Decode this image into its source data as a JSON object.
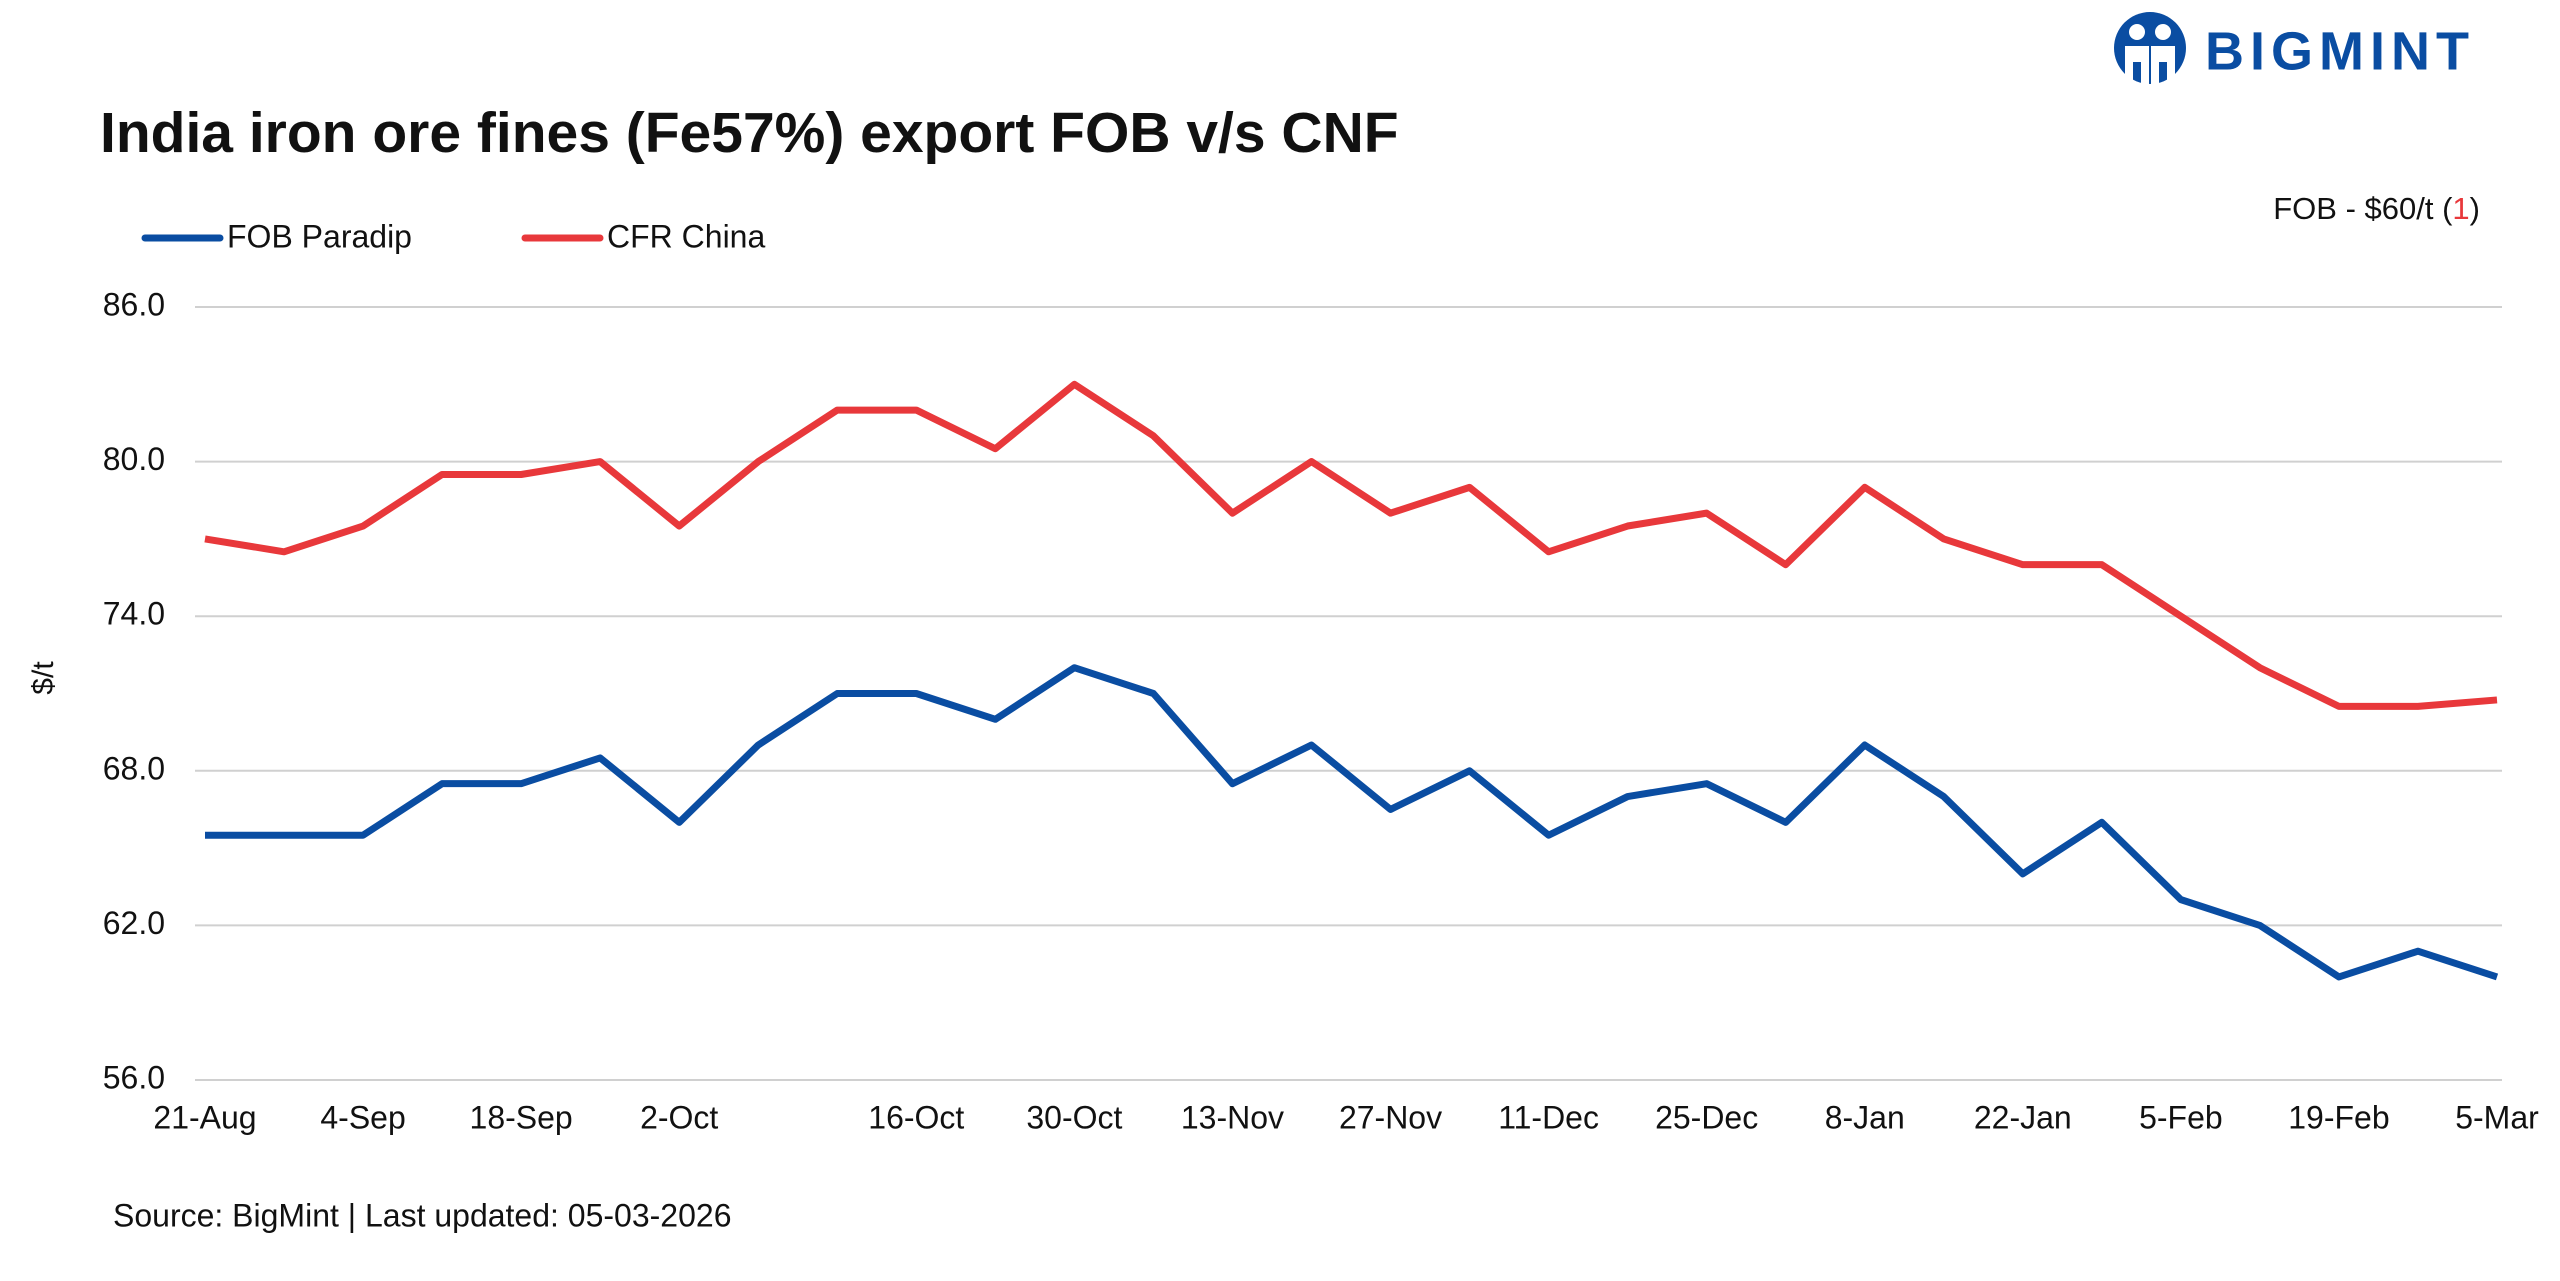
{
  "chart_data": {
    "type": "line",
    "title": "India iron ore fines (Fe57%) export FOB v/s CNF",
    "logo": "BIGMINT",
    "note": {
      "prefix": "FOB - $60/t (",
      "highlight": "1",
      "suffix": ")"
    },
    "y_label": "$/t",
    "source": "Source: BigMint | Last updated: 05-03-2026",
    "categories": [
      "21-Aug",
      null,
      "4-Sep",
      null,
      "18-Sep",
      null,
      "2-Oct",
      null,
      null,
      "16-Oct",
      null,
      "30-Oct",
      null,
      "13-Nov",
      null,
      "27-Nov",
      null,
      "11-Dec",
      null,
      "25-Dec",
      null,
      "8-Jan",
      null,
      "22-Jan",
      null,
      "5-Feb",
      null,
      "19-Feb",
      null,
      "5-Mar"
    ],
    "series": [
      {
        "name": "FOB Paradip",
        "color": "#0a4da2",
        "values": [
          65.5,
          65.5,
          65.5,
          67.5,
          67.5,
          68.5,
          66,
          69,
          71,
          71,
          70,
          72,
          71,
          67.5,
          69,
          66.5,
          68,
          65.5,
          67,
          67.5,
          66,
          69,
          67,
          64,
          66,
          63,
          62,
          60,
          61,
          60
        ]
      },
      {
        "name": "CFR China",
        "color": "#e8383b",
        "values": [
          77,
          76.5,
          77.5,
          79.5,
          79.5,
          80,
          77.5,
          80,
          82,
          82,
          80.5,
          83,
          81,
          78,
          80,
          78,
          79,
          76.5,
          77.5,
          78,
          76,
          79,
          77,
          76,
          76,
          74,
          72,
          70.5,
          70.5,
          70.75
        ]
      }
    ],
    "ylim": [
      56,
      86
    ],
    "yticks": [
      {
        "value": 56,
        "label": "56.0"
      },
      {
        "value": 62,
        "label": "62.0"
      },
      {
        "value": 68,
        "label": "68.0"
      },
      {
        "value": 74,
        "label": "74.0"
      },
      {
        "value": 80,
        "label": "80.0"
      },
      {
        "value": 86,
        "label": "86.0"
      }
    ],
    "grid": true
  }
}
